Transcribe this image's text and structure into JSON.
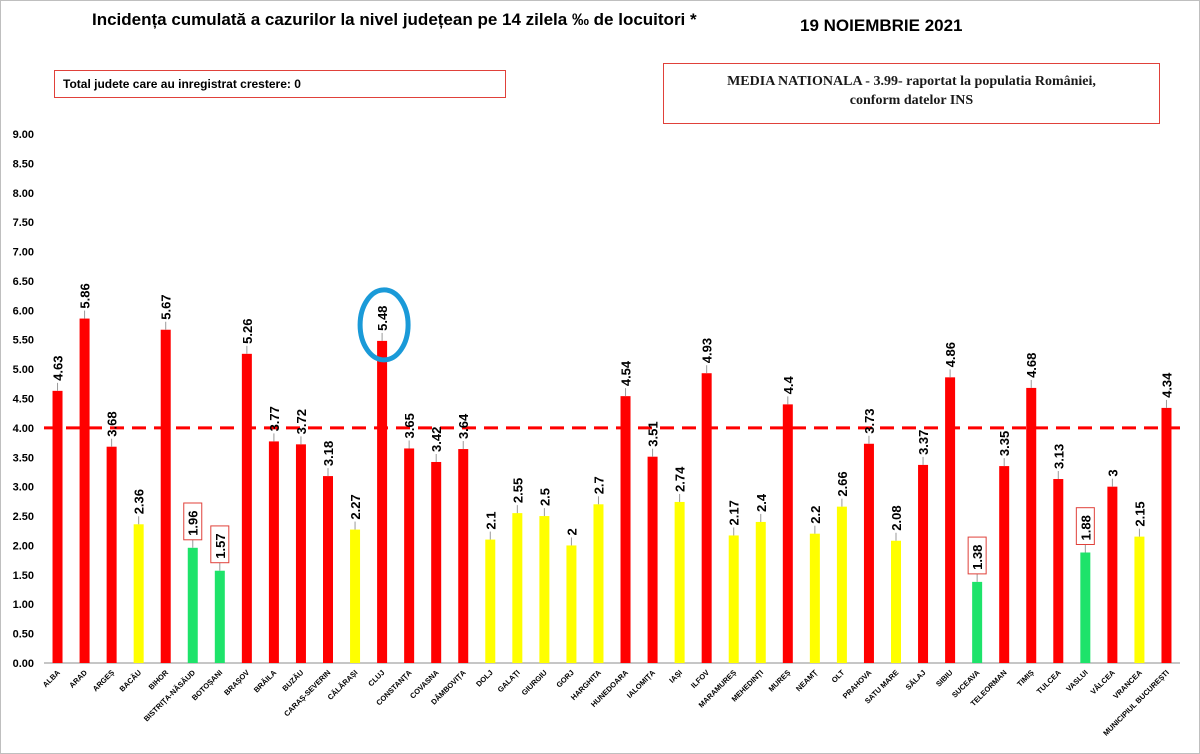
{
  "header": {
    "title": "Incidența cumulată a cazurilor la nivel județean pe 14 zilela ‰ de locuitori *",
    "date": "19 NOIEMBRIE 2021"
  },
  "info_box": {
    "text": "Total judete care au inregistrat crestere: 0"
  },
  "national_box": {
    "line1": "MEDIA NATIONALA - 3.99- raportat la populatia României,",
    "line2": "conform datelor INS"
  },
  "colors": {
    "red": "#ff0000",
    "yellow": "#ffff00",
    "green": "#1ee36a",
    "threshold_line": "#ff0000",
    "highlight_ellipse": "#1a9ad8",
    "label_box": "#e0413a"
  },
  "chart_data": {
    "type": "bar",
    "title": "Incidența cumulată a cazurilor la nivel județean pe 14 zilela ‰ de locuitori *",
    "ylim": [
      0,
      9
    ],
    "yticks": [
      "0.00",
      "0.50",
      "1.00",
      "1.50",
      "2.00",
      "2.50",
      "3.00",
      "3.50",
      "4.00",
      "4.50",
      "5.00",
      "5.50",
      "6.00",
      "6.50",
      "7.00",
      "7.50",
      "8.00",
      "8.50",
      "9.00"
    ],
    "threshold": 4.0,
    "threshold_style": "dashed",
    "grid": false,
    "categories": [
      "ALBA",
      "ARAD",
      "ARGEȘ",
      "BACĂU",
      "BIHOR",
      "BISTRIȚA-NĂSĂUD",
      "BOTOȘANI",
      "BRAȘOV",
      "BRĂILA",
      "BUZĂU",
      "CARAȘ-SEVERIN",
      "CĂLĂRAȘI",
      "CLUJ",
      "CONSTANȚA",
      "COVASNA",
      "DÂMBOVIȚA",
      "DOLJ",
      "GALAȚI",
      "GIURGIU",
      "GORJ",
      "HARGHITA",
      "HUNEDOARA",
      "IALOMIȚA",
      "IAȘI",
      "ILFOV",
      "MARAMUREȘ",
      "MEHEDINȚI",
      "MUREȘ",
      "NEAMȚ",
      "OLT",
      "PRAHOVA",
      "SATU MARE",
      "SĂLAJ",
      "SIBIU",
      "SUCEAVA",
      "TELEORMAN",
      "TIMIȘ",
      "TULCEA",
      "VASLUI",
      "VÂLCEA",
      "VRANCEA",
      "MUNICIPIUL BUCUREȘTI"
    ],
    "values": [
      4.63,
      5.86,
      3.68,
      2.36,
      5.67,
      1.96,
      1.57,
      5.26,
      3.77,
      3.72,
      3.18,
      2.27,
      5.48,
      3.65,
      3.42,
      3.64,
      2.1,
      2.55,
      2.5,
      2,
      2.7,
      4.54,
      3.51,
      2.74,
      4.93,
      2.17,
      2.4,
      4.4,
      2.2,
      2.66,
      3.73,
      2.08,
      3.37,
      4.86,
      1.38,
      3.35,
      4.68,
      3.13,
      1.88,
      3,
      2.15,
      4.34
    ],
    "labels": [
      "4.63",
      "5.86",
      "3.68",
      "2.36",
      "5.67",
      "1.96",
      "1.57",
      "5.26",
      "3.77",
      "3.72",
      "3.18",
      "2.27",
      "5.48",
      "3.65",
      "3.42",
      "3.64",
      "2.1",
      "2.55",
      "2.5",
      "2",
      "2.7",
      "4.54",
      "3.51",
      "2.74",
      "4.93",
      "2.17",
      "2.4",
      "4.4",
      "2.2",
      "2.66",
      "3.73",
      "2.08",
      "3.37",
      "4.86",
      "1.38",
      "3.35",
      "4.68",
      "3.13",
      "1.88",
      "3",
      "2.15",
      "4.34"
    ],
    "bar_colors": [
      "red",
      "red",
      "red",
      "yellow",
      "red",
      "green",
      "green",
      "red",
      "red",
      "red",
      "red",
      "yellow",
      "red",
      "red",
      "red",
      "red",
      "yellow",
      "yellow",
      "yellow",
      "yellow",
      "yellow",
      "red",
      "red",
      "yellow",
      "red",
      "yellow",
      "yellow",
      "red",
      "yellow",
      "yellow",
      "red",
      "yellow",
      "red",
      "red",
      "green",
      "red",
      "red",
      "red",
      "green",
      "red",
      "yellow",
      "red"
    ],
    "boxed_labels": [
      "BISTRIȚA-NĂSĂUD",
      "BOTOȘANI",
      "SUCEAVA",
      "VASLUI"
    ],
    "highlighted": [
      "CLUJ"
    ]
  }
}
